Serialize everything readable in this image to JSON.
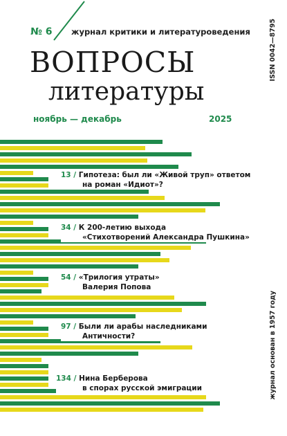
{
  "header": {
    "issue_no": "№ 6",
    "subtitle": "журнал критики и литературоведения",
    "title_line1": "ВОПРОСЫ",
    "title_line2": "литературы",
    "months": "ноябрь — декабрь",
    "year": "2025",
    "issn": "ISSN 0042—8795",
    "founded": "журнал основан в 1957 году"
  },
  "articles": [
    {
      "page": "13",
      "line1": "Гипотеза: был ли «Живой труп» ответом",
      "line2": "на роман «Идиот»?"
    },
    {
      "page": "34",
      "line1": "К 200-летию выхода",
      "line2": "«Стихотворений Александра Пушкина»"
    },
    {
      "page": "54",
      "line1": "«Трилогия утраты»",
      "line2": "Валерия Попова"
    },
    {
      "page": "97",
      "line1": "Были ли арабы наследниками",
      "line2": "Античности?"
    },
    {
      "page": "134",
      "line1": "Нина Берберова",
      "line2": "в спорах русской эмиграции"
    }
  ],
  "colors": {
    "green": "#1f8a4c",
    "yellow": "#e7d81b",
    "background": "#ffffff"
  }
}
